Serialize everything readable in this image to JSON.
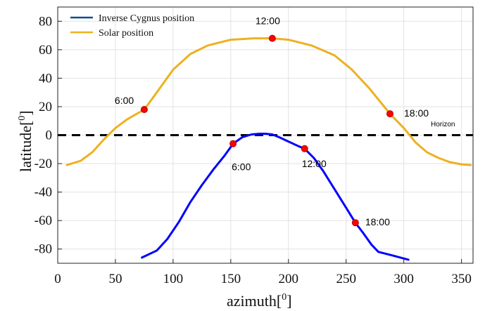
{
  "chart_data": {
    "type": "line",
    "xlabel": "azimuth",
    "xlabel_sup": "0",
    "ylabel": "latitude",
    "ylabel_sup": "0",
    "xlim": [
      0,
      360
    ],
    "ylim": [
      -90,
      90
    ],
    "xticks": [
      0,
      50,
      100,
      150,
      200,
      250,
      300,
      350
    ],
    "yticks": [
      80,
      60,
      40,
      20,
      0,
      -20,
      -40,
      -60,
      -80
    ],
    "grid": true,
    "legend_position": "top-left",
    "series": [
      {
        "name": "Inverse Cygnus position",
        "color": "#0000ff",
        "legend_color": "#0e4f8c",
        "x": [
          73,
          86,
          95,
          105,
          115,
          125,
          135,
          145,
          152,
          160,
          168,
          175,
          180,
          186,
          192,
          200,
          208,
          214,
          222,
          230,
          240,
          250,
          258,
          265,
          272,
          278,
          290,
          304
        ],
        "y": [
          -86,
          -81,
          -73,
          -61,
          -47,
          -35,
          -24,
          -14,
          -6,
          -1.5,
          0.5,
          1,
          1,
          0.5,
          -1.5,
          -4.5,
          -7.5,
          -9.5,
          -16,
          -25,
          -38,
          -51,
          -61.5,
          -69,
          -77,
          -82,
          -84.5,
          -87.5
        ]
      },
      {
        "name": "Solar position",
        "color": "#edb120",
        "x": [
          8,
          20,
          30,
          40,
          50,
          60,
          75,
          85,
          100,
          115,
          130,
          150,
          170,
          186,
          200,
          220,
          240,
          255,
          270,
          288,
          300,
          310,
          320,
          330,
          340,
          350,
          358
        ],
        "y": [
          -21,
          -18,
          -12,
          -3,
          5,
          11,
          18,
          29,
          46,
          57,
          63,
          67,
          68,
          68,
          67,
          63,
          56,
          46,
          33,
          15,
          5,
          -5,
          -12,
          -16,
          -19,
          -20.5,
          -21
        ]
      }
    ],
    "horizon": {
      "y": 0,
      "label": "Horizon"
    },
    "time_markers": [
      {
        "series": "Solar position",
        "label": "6:00",
        "x": 75,
        "y": 18
      },
      {
        "series": "Solar position",
        "label": "12:00",
        "x": 186,
        "y": 68
      },
      {
        "series": "Solar position",
        "label": "18:00",
        "x": 288,
        "y": 15
      },
      {
        "series": "Inverse Cygnus position",
        "label": "6:00",
        "x": 152,
        "y": -6
      },
      {
        "series": "Inverse Cygnus position",
        "label": "12:00",
        "x": 214,
        "y": -9.5
      },
      {
        "series": "Inverse Cygnus position",
        "label": "18:00",
        "x": 258,
        "y": -61.5
      }
    ]
  }
}
